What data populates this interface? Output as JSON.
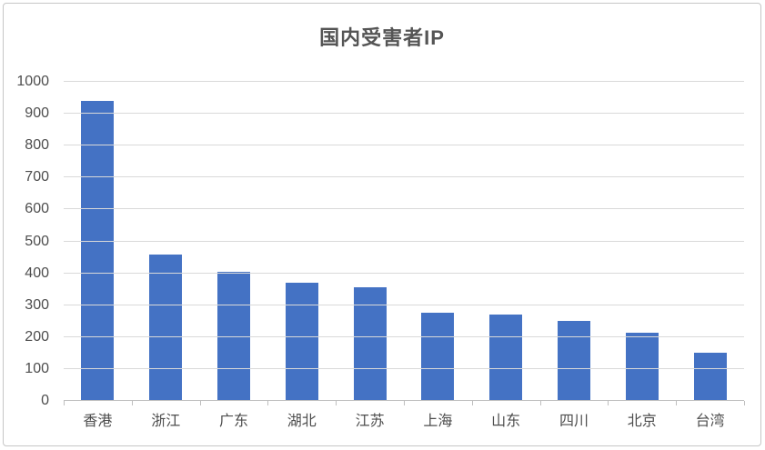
{
  "chart_data": {
    "type": "bar",
    "title": "国内受害者IP",
    "categories": [
      "香港",
      "浙江",
      "广东",
      "湖北",
      "江苏",
      "上海",
      "山东",
      "四川",
      "北京",
      "台湾"
    ],
    "values": [
      940,
      460,
      405,
      370,
      355,
      275,
      270,
      250,
      215,
      150
    ],
    "xlabel": "",
    "ylabel": "",
    "ylim": [
      0,
      1000
    ],
    "yticks": [
      0,
      100,
      200,
      300,
      400,
      500,
      600,
      700,
      800,
      900,
      1000
    ],
    "grid": true,
    "legend_position": "none",
    "bar_color": "#4472C4",
    "gridline_color": "#D9D9D9",
    "axis_line_color": "#BFBFBF",
    "text_color": "#4D4D4D",
    "title_color": "#555555",
    "frame_border_color": "#C6C6C6"
  }
}
